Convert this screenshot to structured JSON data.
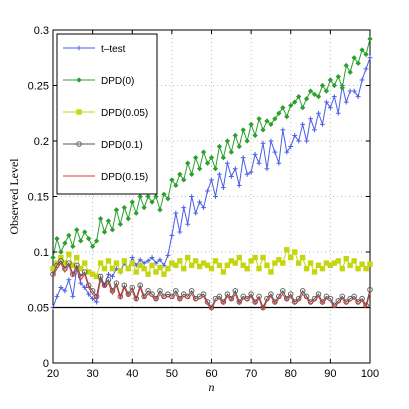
{
  "chart_data": {
    "type": "line",
    "title": "",
    "xlabel": "n",
    "ylabel": "Observed Level",
    "xlim": [
      20,
      100
    ],
    "ylim": [
      0,
      0.3
    ],
    "xticks": [
      "20",
      "30",
      "40",
      "50",
      "60",
      "70",
      "80",
      "90",
      "100"
    ],
    "yticks": [
      "0",
      "0.05",
      "0.1",
      "0.15",
      "0.2",
      "0.25",
      "0.3"
    ],
    "grid": true,
    "legend_position": "top-left",
    "reference_line": 0.05,
    "x": [
      20,
      21,
      22,
      23,
      24,
      25,
      26,
      27,
      28,
      29,
      30,
      31,
      32,
      33,
      34,
      35,
      36,
      37,
      38,
      39,
      40,
      41,
      42,
      43,
      44,
      45,
      46,
      47,
      48,
      49,
      50,
      51,
      52,
      53,
      54,
      55,
      56,
      57,
      58,
      59,
      60,
      61,
      62,
      63,
      64,
      65,
      66,
      67,
      68,
      69,
      70,
      71,
      72,
      73,
      74,
      75,
      76,
      77,
      78,
      79,
      80,
      81,
      82,
      83,
      84,
      85,
      86,
      87,
      88,
      89,
      90,
      91,
      92,
      93,
      94,
      95,
      96,
      97,
      98,
      99,
      100
    ],
    "series": [
      {
        "name": "t–test",
        "color": "#4a5ee8",
        "marker": "plus",
        "values": [
          0.05,
          0.06,
          0.068,
          0.065,
          0.075,
          0.06,
          0.085,
          0.072,
          0.068,
          0.062,
          0.058,
          0.055,
          0.075,
          0.07,
          0.08,
          0.078,
          0.085,
          0.082,
          0.09,
          0.085,
          0.095,
          0.088,
          0.093,
          0.09,
          0.092,
          0.095,
          0.09,
          0.093,
          0.088,
          0.097,
          0.115,
          0.135,
          0.118,
          0.14,
          0.125,
          0.15,
          0.135,
          0.145,
          0.14,
          0.155,
          0.165,
          0.15,
          0.17,
          0.158,
          0.18,
          0.168,
          0.175,
          0.16,
          0.185,
          0.17,
          0.172,
          0.188,
          0.18,
          0.198,
          0.175,
          0.2,
          0.19,
          0.18,
          0.21,
          0.19,
          0.195,
          0.205,
          0.2,
          0.215,
          0.2,
          0.22,
          0.21,
          0.225,
          0.215,
          0.235,
          0.23,
          0.24,
          0.225,
          0.25,
          0.235,
          0.245,
          0.245,
          0.24,
          0.255,
          0.265,
          0.275
        ]
      },
      {
        "name": "DPD(0)",
        "color": "#2ca02c",
        "marker": "diamond",
        "values": [
          0.095,
          0.112,
          0.1,
          0.108,
          0.115,
          0.105,
          0.12,
          0.11,
          0.118,
          0.112,
          0.105,
          0.11,
          0.13,
          0.118,
          0.128,
          0.12,
          0.138,
          0.125,
          0.14,
          0.13,
          0.145,
          0.135,
          0.15,
          0.14,
          0.15,
          0.145,
          0.15,
          0.138,
          0.152,
          0.148,
          0.165,
          0.16,
          0.17,
          0.165,
          0.18,
          0.17,
          0.185,
          0.175,
          0.19,
          0.18,
          0.185,
          0.175,
          0.195,
          0.185,
          0.2,
          0.19,
          0.205,
          0.195,
          0.21,
          0.2,
          0.215,
          0.205,
          0.22,
          0.21,
          0.218,
          0.215,
          0.22,
          0.225,
          0.23,
          0.222,
          0.232,
          0.235,
          0.24,
          0.23,
          0.238,
          0.245,
          0.242,
          0.24,
          0.25,
          0.245,
          0.255,
          0.25,
          0.258,
          0.248,
          0.268,
          0.262,
          0.275,
          0.27,
          0.282,
          0.278,
          0.292
        ]
      },
      {
        "name": "DPD(0.05)",
        "color": "#c5d610",
        "marker": "square",
        "values": [
          0.085,
          0.09,
          0.095,
          0.09,
          0.098,
          0.088,
          0.095,
          0.085,
          0.09,
          0.082,
          0.08,
          0.078,
          0.09,
          0.085,
          0.092,
          0.085,
          0.09,
          0.083,
          0.092,
          0.085,
          0.09,
          0.082,
          0.088,
          0.085,
          0.08,
          0.088,
          0.082,
          0.086,
          0.08,
          0.085,
          0.09,
          0.088,
          0.092,
          0.085,
          0.095,
          0.088,
          0.092,
          0.087,
          0.09,
          0.088,
          0.085,
          0.092,
          0.088,
          0.082,
          0.088,
          0.092,
          0.09,
          0.095,
          0.088,
          0.085,
          0.092,
          0.095,
          0.085,
          0.095,
          0.088,
          0.082,
          0.09,
          0.093,
          0.09,
          0.102,
          0.095,
          0.1,
          0.09,
          0.095,
          0.085,
          0.09,
          0.082,
          0.088,
          0.085,
          0.09,
          0.088,
          0.09,
          0.092,
          0.085,
          0.094,
          0.088,
          0.092,
          0.085,
          0.089,
          0.085,
          0.089
        ]
      },
      {
        "name": "DPD(0.1)",
        "color": "#555555",
        "marker": "circle",
        "values": [
          0.08,
          0.088,
          0.092,
          0.085,
          0.09,
          0.08,
          0.088,
          0.078,
          0.082,
          0.07,
          0.065,
          0.06,
          0.078,
          0.07,
          0.075,
          0.065,
          0.072,
          0.06,
          0.07,
          0.062,
          0.068,
          0.058,
          0.07,
          0.06,
          0.065,
          0.062,
          0.058,
          0.065,
          0.06,
          0.062,
          0.06,
          0.065,
          0.058,
          0.062,
          0.06,
          0.065,
          0.058,
          0.06,
          0.062,
          0.055,
          0.05,
          0.058,
          0.06,
          0.055,
          0.062,
          0.058,
          0.065,
          0.055,
          0.06,
          0.058,
          0.062,
          0.055,
          0.06,
          0.05,
          0.058,
          0.062,
          0.055,
          0.06,
          0.065,
          0.058,
          0.062,
          0.055,
          0.058,
          0.065,
          0.06,
          0.055,
          0.058,
          0.062,
          0.055,
          0.06,
          0.058,
          0.052,
          0.056,
          0.06,
          0.055,
          0.058,
          0.06,
          0.055,
          0.058,
          0.052,
          0.066
        ]
      },
      {
        "name": "DPD(0.15)",
        "color": "#e03a3a",
        "marker": "none",
        "values": [
          0.078,
          0.085,
          0.09,
          0.082,
          0.088,
          0.078,
          0.085,
          0.075,
          0.08,
          0.068,
          0.062,
          0.058,
          0.075,
          0.068,
          0.072,
          0.062,
          0.07,
          0.058,
          0.068,
          0.06,
          0.065,
          0.056,
          0.068,
          0.058,
          0.062,
          0.06,
          0.056,
          0.062,
          0.058,
          0.06,
          0.058,
          0.062,
          0.056,
          0.06,
          0.058,
          0.062,
          0.056,
          0.058,
          0.06,
          0.053,
          0.048,
          0.056,
          0.058,
          0.053,
          0.06,
          0.056,
          0.062,
          0.053,
          0.058,
          0.056,
          0.06,
          0.053,
          0.058,
          0.048,
          0.056,
          0.06,
          0.053,
          0.058,
          0.062,
          0.056,
          0.06,
          0.053,
          0.056,
          0.062,
          0.058,
          0.053,
          0.056,
          0.06,
          0.053,
          0.058,
          0.056,
          0.05,
          0.054,
          0.058,
          0.053,
          0.056,
          0.058,
          0.053,
          0.056,
          0.05,
          0.063
        ]
      }
    ]
  }
}
